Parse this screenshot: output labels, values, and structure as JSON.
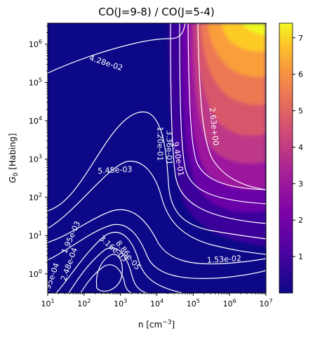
{
  "chart_data": {
    "type": "heatmap",
    "title": "CO(J=9-8) / CO(J=5-4)",
    "xlabel_main": "n [cm",
    "xlabel_sup": "−3",
    "xlabel_end": "]",
    "ylabel_main": "G",
    "ylabel_sub": "0",
    "ylabel_end": " [Habing]",
    "x_scale": "log",
    "y_scale": "log",
    "x_range_log10": [
      1,
      7
    ],
    "y_range_log10": [
      -0.5,
      6.55
    ],
    "x_ticks": [
      {
        "exp": 1,
        "base": "10",
        "sup": "1"
      },
      {
        "exp": 2,
        "base": "10",
        "sup": "2"
      },
      {
        "exp": 3,
        "base": "10",
        "sup": "3"
      },
      {
        "exp": 4,
        "base": "10",
        "sup": "4"
      },
      {
        "exp": 5,
        "base": "10",
        "sup": "5"
      },
      {
        "exp": 6,
        "base": "10",
        "sup": "6"
      },
      {
        "exp": 7,
        "base": "10",
        "sup": "7"
      }
    ],
    "y_ticks": [
      {
        "exp": 0,
        "base": "10",
        "sup": "0"
      },
      {
        "exp": 1,
        "base": "10",
        "sup": "1"
      },
      {
        "exp": 2,
        "base": "10",
        "sup": "2"
      },
      {
        "exp": 3,
        "base": "10",
        "sup": "3"
      },
      {
        "exp": 4,
        "base": "10",
        "sup": "4"
      },
      {
        "exp": 5,
        "base": "10",
        "sup": "5"
      },
      {
        "exp": 6,
        "base": "10",
        "sup": "6"
      }
    ],
    "colormap": "plasma",
    "colorbar": {
      "range": [
        0.0,
        7.4
      ],
      "ticks": [
        "1",
        "2",
        "3",
        "4",
        "5",
        "6",
        "7"
      ]
    },
    "contour_labels": [
      {
        "text": "4.28e-02",
        "x": 2.6,
        "y": 5.5,
        "rotation": 18
      },
      {
        "text": "5.45e-03",
        "x": 2.85,
        "y": 2.7,
        "rotation": -3
      },
      {
        "text": "1.20e-01",
        "x": 4.08,
        "y": 3.4,
        "rotation": 90
      },
      {
        "text": "3.36e-01",
        "x": 4.33,
        "y": 3.3,
        "rotation": 90
      },
      {
        "text": "9.40e-01",
        "x": 4.58,
        "y": 3.0,
        "rotation": 80
      },
      {
        "text": "2.63e+00",
        "x": 5.56,
        "y": 3.85,
        "rotation": 84
      },
      {
        "text": "1.53e-02",
        "x": 5.85,
        "y": 0.37,
        "rotation": -3
      },
      {
        "text": "8.86e-05",
        "x": 3.2,
        "y": 0.48,
        "rotation": 52
      },
      {
        "text": "3.16e-03",
        "x": 2.8,
        "y": 0.65,
        "rotation": 42
      },
      {
        "text": "1.95e-03",
        "x": 1.65,
        "y": 0.95,
        "rotation": -66
      },
      {
        "text": "2.48e-04",
        "x": 1.6,
        "y": 0.25,
        "rotation": -70
      },
      {
        "text": "5.95e-04",
        "x": 1.1,
        "y": -0.15,
        "rotation": -70
      }
    ]
  }
}
